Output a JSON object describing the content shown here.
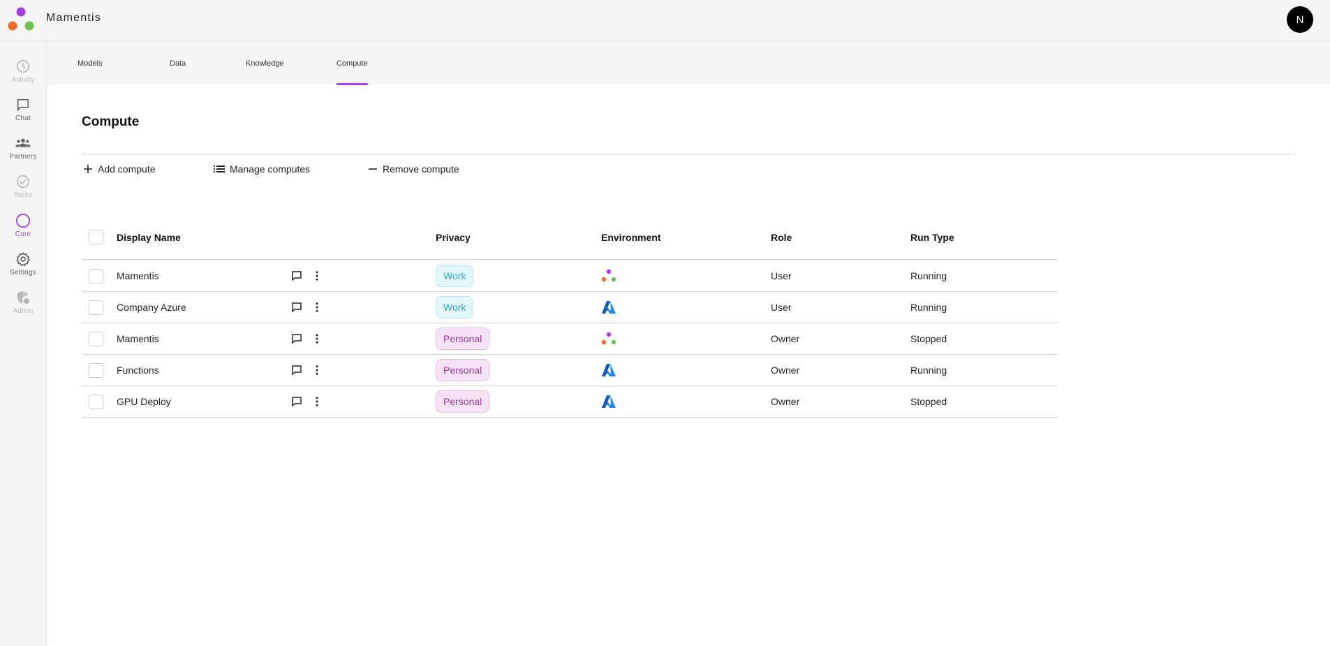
{
  "app": {
    "title": "Mamentis",
    "avatar_initial": "N"
  },
  "colors": {
    "accent": "#a541e0",
    "logo_purple": "#a541e0",
    "logo_orange": "#f26b2a",
    "logo_green": "#6cc24a"
  },
  "sidebar": {
    "items": [
      {
        "label": "Activity",
        "icon": "clock-icon",
        "state": "disabled"
      },
      {
        "label": "Chat",
        "icon": "chat-icon",
        "state": "normal"
      },
      {
        "label": "Partners",
        "icon": "group-icon",
        "state": "normal"
      },
      {
        "label": "Tasks",
        "icon": "check-circle-icon",
        "state": "disabled"
      },
      {
        "label": "Core",
        "icon": "circle-icon",
        "state": "active"
      },
      {
        "label": "Settings",
        "icon": "gear-icon",
        "state": "normal"
      },
      {
        "label": "Admin",
        "icon": "admin-shield-icon",
        "state": "disabled"
      }
    ]
  },
  "tabs": [
    {
      "label": "Models"
    },
    {
      "label": "Data"
    },
    {
      "label": "Knowledge"
    },
    {
      "label": "Compute",
      "active": true
    }
  ],
  "page": {
    "title": "Compute"
  },
  "toolbar": {
    "add_label": "Add compute",
    "manage_label": "Manage computes",
    "remove_label": "Remove compute"
  },
  "table": {
    "headers": {
      "name": "Display Name",
      "privacy": "Privacy",
      "environment": "Environment",
      "role": "Role",
      "run_type": "Run Type"
    },
    "rows": [
      {
        "name": "Mamentis",
        "privacy": "Work",
        "environment": "mamentis-icon",
        "role": "User",
        "run_type": "Running"
      },
      {
        "name": "Company Azure",
        "privacy": "Work",
        "environment": "azure-icon",
        "role": "User",
        "run_type": "Running"
      },
      {
        "name": "Mamentis",
        "privacy": "Personal",
        "environment": "mamentis-icon",
        "role": "Owner",
        "run_type": "Stopped"
      },
      {
        "name": "Functions",
        "privacy": "Personal",
        "environment": "azure-icon",
        "role": "Owner",
        "run_type": "Running"
      },
      {
        "name": "GPU Deploy",
        "privacy": "Personal",
        "environment": "azure-icon",
        "role": "Owner",
        "run_type": "Stopped"
      }
    ]
  }
}
